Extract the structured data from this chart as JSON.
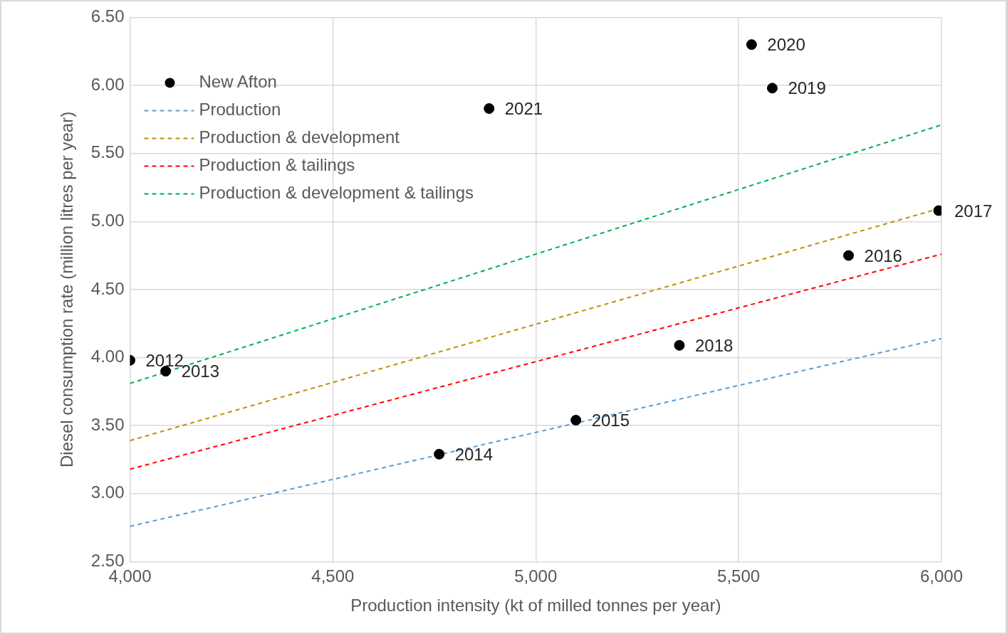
{
  "chart_data": {
    "type": "scatter",
    "xlabel": "Production intensity (kt of milled tonnes per year)",
    "ylabel": "Diesel consumption rate (million litres per year)",
    "xlim": [
      4000,
      6000
    ],
    "xticks": [
      {
        "value": 4000,
        "label": "4,000"
      },
      {
        "value": 4500,
        "label": "4,500"
      },
      {
        "value": 5000,
        "label": "5,000"
      },
      {
        "value": 5500,
        "label": "5,500"
      },
      {
        "value": 6000,
        "label": "6,000"
      }
    ],
    "ylim": [
      2.5,
      6.5
    ],
    "yticks": [
      {
        "value": 2.5,
        "label": "2.50"
      },
      {
        "value": 3,
        "label": "3.00"
      },
      {
        "value": 3.5,
        "label": "3.50"
      },
      {
        "value": 4,
        "label": "4.00"
      },
      {
        "value": 4.5,
        "label": "4.50"
      },
      {
        "value": 5,
        "label": "5.00"
      },
      {
        "value": 5.5,
        "label": "5.50"
      },
      {
        "value": 6,
        "label": "6.00"
      },
      {
        "value": 6.5,
        "label": "6.50"
      }
    ],
    "grid": true,
    "legend": "top left",
    "series": [
      {
        "name": "New Afton",
        "type": "scatter",
        "color": "#000000",
        "marker": "circle",
        "x": [
          4000,
          4088,
          4762,
          5099,
          5771,
          5993,
          5354,
          5583,
          5532,
          4885
        ],
        "values": [
          3.98,
          3.9,
          3.29,
          3.54,
          4.75,
          5.08,
          4.09,
          5.98,
          6.3,
          5.83
        ]
      },
      {
        "name": "Production",
        "type": "line",
        "color": "#5b9bd5",
        "line_style": "dashed",
        "marker": "none",
        "x": [
          4000,
          6000
        ],
        "values": [
          2.76,
          4.14
        ]
      },
      {
        "name": "Production & development",
        "type": "line",
        "color": "#bf9000",
        "line_style": "dashed",
        "marker": "none",
        "x": [
          4000,
          6000
        ],
        "values": [
          3.39,
          5.1
        ]
      },
      {
        "name": "Production & tailings",
        "type": "line",
        "color": "#ff0000",
        "line_style": "dashed",
        "marker": "none",
        "x": [
          4000,
          6000
        ],
        "values": [
          3.18,
          4.76
        ]
      },
      {
        "name": "Production & development & tailings",
        "type": "line",
        "color": "#00b050",
        "line_style": "dashed",
        "marker": "none",
        "x": [
          4000,
          6000
        ],
        "values": [
          3.81,
          5.71
        ]
      }
    ],
    "annotations": [
      {
        "text": "2012",
        "x": 4000,
        "y": 3.98
      },
      {
        "text": "2013",
        "x": 4088,
        "y": 3.9
      },
      {
        "text": "2014",
        "x": 4762,
        "y": 3.29
      },
      {
        "text": "2015",
        "x": 5099,
        "y": 3.54
      },
      {
        "text": "2016",
        "x": 5771,
        "y": 4.75
      },
      {
        "text": "2017",
        "x": 5993,
        "y": 5.08
      },
      {
        "text": "2018",
        "x": 5354,
        "y": 4.09
      },
      {
        "text": "2019",
        "x": 5583,
        "y": 5.98
      },
      {
        "text": "2020",
        "x": 5532,
        "y": 6.3
      },
      {
        "text": "2021",
        "x": 4885,
        "y": 5.83
      }
    ]
  }
}
